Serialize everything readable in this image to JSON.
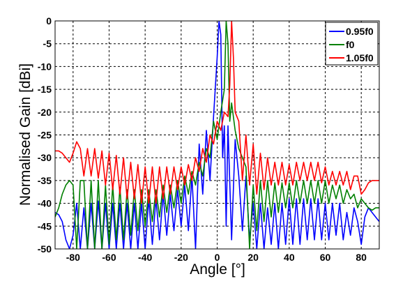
{
  "chart_data": {
    "type": "line",
    "title": "",
    "xlabel": "Angle [°]",
    "ylabel": "Normalised Gain [dBi]",
    "xlim": [
      -90,
      90
    ],
    "ylim": [
      -50,
      0
    ],
    "xticks": [
      "-80",
      "-60",
      "-40",
      "-20",
      "0",
      "20",
      "40",
      "60",
      "80"
    ],
    "yticks": [
      "0",
      "-5",
      "-10",
      "-15",
      "-20",
      "-25",
      "-30",
      "-35",
      "-40",
      "-45",
      "-50"
    ],
    "grid": true,
    "legend_position": "top-right",
    "series": [
      {
        "name": "0.95f0",
        "color": "#0000ff",
        "points": [
          [
            -90,
            -42
          ],
          [
            -88,
            -42.5
          ],
          [
            -86,
            -44
          ],
          [
            -84,
            -48
          ],
          [
            -82,
            -50
          ],
          [
            -80,
            -47
          ],
          [
            -78,
            -40
          ],
          [
            -76,
            -50
          ],
          [
            -74,
            -41
          ],
          [
            -72,
            -50
          ],
          [
            -70,
            -40
          ],
          [
            -68,
            -50
          ],
          [
            -66,
            -39.5
          ],
          [
            -64,
            -50
          ],
          [
            -62,
            -40
          ],
          [
            -60,
            -50
          ],
          [
            -58,
            -40
          ],
          [
            -56,
            -50
          ],
          [
            -54,
            -40
          ],
          [
            -52,
            -50
          ],
          [
            -50,
            -40
          ],
          [
            -48,
            -50
          ],
          [
            -46,
            -40
          ],
          [
            -44,
            -50
          ],
          [
            -42,
            -40
          ],
          [
            -40,
            -50
          ],
          [
            -38,
            -39
          ],
          [
            -36,
            -49
          ],
          [
            -34,
            -39
          ],
          [
            -32,
            -48
          ],
          [
            -30,
            -38
          ],
          [
            -28,
            -47
          ],
          [
            -26,
            -38
          ],
          [
            -24,
            -46
          ],
          [
            -22,
            -37
          ],
          [
            -20,
            -45
          ],
          [
            -18,
            -36
          ],
          [
            -16,
            -46
          ],
          [
            -14,
            -34
          ],
          [
            -12,
            -50
          ],
          [
            -10,
            -27
          ],
          [
            -8,
            -38
          ],
          [
            -6,
            -24
          ],
          [
            -4,
            -35
          ],
          [
            -2,
            -21
          ],
          [
            0,
            -8
          ],
          [
            1,
            0
          ],
          [
            2,
            -3
          ],
          [
            3,
            -30
          ],
          [
            4,
            -23
          ],
          [
            5,
            -45
          ],
          [
            6,
            -23
          ],
          [
            8,
            -48
          ],
          [
            10,
            -26
          ],
          [
            12,
            -34
          ],
          [
            14,
            -46
          ],
          [
            16,
            -34
          ],
          [
            18,
            -48
          ],
          [
            20,
            -40
          ],
          [
            22,
            -50
          ],
          [
            24,
            -40
          ],
          [
            26,
            -50
          ],
          [
            28,
            -41
          ],
          [
            30,
            -49
          ],
          [
            32,
            -40
          ],
          [
            34,
            -50
          ],
          [
            36,
            -40
          ],
          [
            38,
            -49
          ],
          [
            40,
            -39
          ],
          [
            42,
            -49
          ],
          [
            44,
            -39
          ],
          [
            46,
            -49
          ],
          [
            48,
            -39
          ],
          [
            50,
            -48
          ],
          [
            52,
            -39
          ],
          [
            54,
            -48
          ],
          [
            56,
            -39
          ],
          [
            58,
            -48
          ],
          [
            60,
            -40
          ],
          [
            62,
            -48
          ],
          [
            64,
            -40
          ],
          [
            66,
            -47
          ],
          [
            68,
            -40
          ],
          [
            70,
            -48
          ],
          [
            72,
            -42
          ],
          [
            74,
            -47
          ],
          [
            76,
            -41
          ],
          [
            78,
            -44
          ],
          [
            80,
            -49
          ],
          [
            82,
            -43
          ],
          [
            84,
            -41
          ],
          [
            86,
            -42
          ],
          [
            88,
            -43
          ],
          [
            90,
            -44
          ]
        ]
      },
      {
        "name": "f0",
        "color": "#008000",
        "points": [
          [
            -90,
            -43
          ],
          [
            -88,
            -41
          ],
          [
            -86,
            -38
          ],
          [
            -84,
            -36
          ],
          [
            -82,
            -35
          ],
          [
            -80,
            -36
          ],
          [
            -78,
            -50
          ],
          [
            -76,
            -35
          ],
          [
            -74,
            -35
          ],
          [
            -72,
            -50
          ],
          [
            -70,
            -35
          ],
          [
            -68,
            -50
          ],
          [
            -66,
            -35
          ],
          [
            -64,
            -50
          ],
          [
            -62,
            -36
          ],
          [
            -60,
            -49
          ],
          [
            -58,
            -36
          ],
          [
            -56,
            -48
          ],
          [
            -54,
            -36.5
          ],
          [
            -52,
            -48
          ],
          [
            -50,
            -37
          ],
          [
            -48,
            -47
          ],
          [
            -46,
            -37
          ],
          [
            -44,
            -46
          ],
          [
            -42,
            -37
          ],
          [
            -40,
            -45
          ],
          [
            -38,
            -37
          ],
          [
            -36,
            -44
          ],
          [
            -34,
            -37
          ],
          [
            -32,
            -43
          ],
          [
            -30,
            -36
          ],
          [
            -28,
            -42
          ],
          [
            -26,
            -36
          ],
          [
            -24,
            -41
          ],
          [
            -22,
            -35
          ],
          [
            -20,
            -40
          ],
          [
            -18,
            -34
          ],
          [
            -16,
            -38
          ],
          [
            -14,
            -33
          ],
          [
            -12,
            -36
          ],
          [
            -10,
            -31
          ],
          [
            -8,
            -34
          ],
          [
            -6,
            -28
          ],
          [
            -4,
            -30
          ],
          [
            -2,
            -22
          ],
          [
            0,
            -26
          ],
          [
            2,
            -20
          ],
          [
            4,
            -15
          ],
          [
            5,
            0
          ],
          [
            6,
            -5
          ],
          [
            7,
            -22
          ],
          [
            8,
            -18
          ],
          [
            10,
            -24
          ],
          [
            12,
            -28
          ],
          [
            14,
            -30
          ],
          [
            16,
            -32
          ],
          [
            18,
            -50
          ],
          [
            20,
            -36
          ],
          [
            22,
            -46
          ],
          [
            24,
            -35
          ],
          [
            26,
            -44
          ],
          [
            28,
            -35
          ],
          [
            30,
            -43
          ],
          [
            32,
            -35.5
          ],
          [
            34,
            -42
          ],
          [
            36,
            -35.5
          ],
          [
            38,
            -41
          ],
          [
            40,
            -35.5
          ],
          [
            42,
            -41
          ],
          [
            44,
            -35
          ],
          [
            46,
            -40
          ],
          [
            48,
            -35
          ],
          [
            50,
            -40
          ],
          [
            52,
            -35
          ],
          [
            54,
            -40
          ],
          [
            56,
            -35
          ],
          [
            58,
            -40
          ],
          [
            60,
            -35
          ],
          [
            62,
            -40
          ],
          [
            64,
            -36
          ],
          [
            66,
            -39
          ],
          [
            68,
            -36
          ],
          [
            70,
            -40
          ],
          [
            72,
            -37
          ],
          [
            74,
            -39
          ],
          [
            76,
            -38
          ],
          [
            78,
            -41
          ],
          [
            80,
            -39
          ],
          [
            82,
            -40
          ],
          [
            84,
            -41
          ],
          [
            86,
            -41.5
          ],
          [
            88,
            -41
          ],
          [
            90,
            -41
          ]
        ]
      },
      {
        "name": "1.05f0",
        "color": "#ff0000",
        "points": [
          [
            -90,
            -28.5
          ],
          [
            -88,
            -28.5
          ],
          [
            -86,
            -29
          ],
          [
            -84,
            -30
          ],
          [
            -82,
            -31
          ],
          [
            -80,
            -29
          ],
          [
            -78,
            -26.5
          ],
          [
            -76,
            -28
          ],
          [
            -74,
            -34
          ],
          [
            -72,
            -28
          ],
          [
            -70,
            -34
          ],
          [
            -68,
            -28
          ],
          [
            -66,
            -34.5
          ],
          [
            -64,
            -28.5
          ],
          [
            -62,
            -36
          ],
          [
            -60,
            -29
          ],
          [
            -58,
            -37
          ],
          [
            -56,
            -29.5
          ],
          [
            -54,
            -38
          ],
          [
            -52,
            -30
          ],
          [
            -50,
            -39
          ],
          [
            -48,
            -31
          ],
          [
            -46,
            -39
          ],
          [
            -44,
            -31.5
          ],
          [
            -42,
            -40
          ],
          [
            -40,
            -32
          ],
          [
            -38,
            -40
          ],
          [
            -36,
            -32
          ],
          [
            -34,
            -40
          ],
          [
            -32,
            -32
          ],
          [
            -30,
            -39
          ],
          [
            -28,
            -32
          ],
          [
            -26,
            -38
          ],
          [
            -24,
            -32
          ],
          [
            -22,
            -37
          ],
          [
            -20,
            -32
          ],
          [
            -18,
            -36
          ],
          [
            -16,
            -31.5
          ],
          [
            -14,
            -35
          ],
          [
            -12,
            -30
          ],
          [
            -10,
            -33
          ],
          [
            -8,
            -28
          ],
          [
            -6,
            -31
          ],
          [
            -4,
            -25
          ],
          [
            -2,
            -27
          ],
          [
            0,
            -22
          ],
          [
            2,
            -24
          ],
          [
            4,
            -20
          ],
          [
            6,
            -21
          ],
          [
            7,
            -14
          ],
          [
            8,
            0
          ],
          [
            9,
            -8
          ],
          [
            10,
            -20
          ],
          [
            12,
            -22
          ],
          [
            14,
            -35
          ],
          [
            16,
            -25
          ],
          [
            18,
            -36
          ],
          [
            20,
            -27
          ],
          [
            22,
            -38
          ],
          [
            24,
            -29
          ],
          [
            26,
            -37
          ],
          [
            28,
            -30
          ],
          [
            30,
            -36
          ],
          [
            32,
            -31
          ],
          [
            34,
            -36
          ],
          [
            36,
            -31
          ],
          [
            38,
            -36
          ],
          [
            40,
            -31.5
          ],
          [
            42,
            -36
          ],
          [
            44,
            -31
          ],
          [
            46,
            -35
          ],
          [
            48,
            -31
          ],
          [
            50,
            -35
          ],
          [
            52,
            -31
          ],
          [
            54,
            -35
          ],
          [
            56,
            -31
          ],
          [
            58,
            -35.5
          ],
          [
            60,
            -32
          ],
          [
            62,
            -36
          ],
          [
            64,
            -33
          ],
          [
            66,
            -36
          ],
          [
            68,
            -33
          ],
          [
            70,
            -36
          ],
          [
            72,
            -33
          ],
          [
            74,
            -37
          ],
          [
            76,
            -34
          ],
          [
            78,
            -34
          ],
          [
            80,
            -38
          ],
          [
            82,
            -37
          ],
          [
            84,
            -35.5
          ],
          [
            86,
            -35
          ],
          [
            88,
            -35
          ],
          [
            90,
            -35
          ]
        ]
      }
    ]
  }
}
